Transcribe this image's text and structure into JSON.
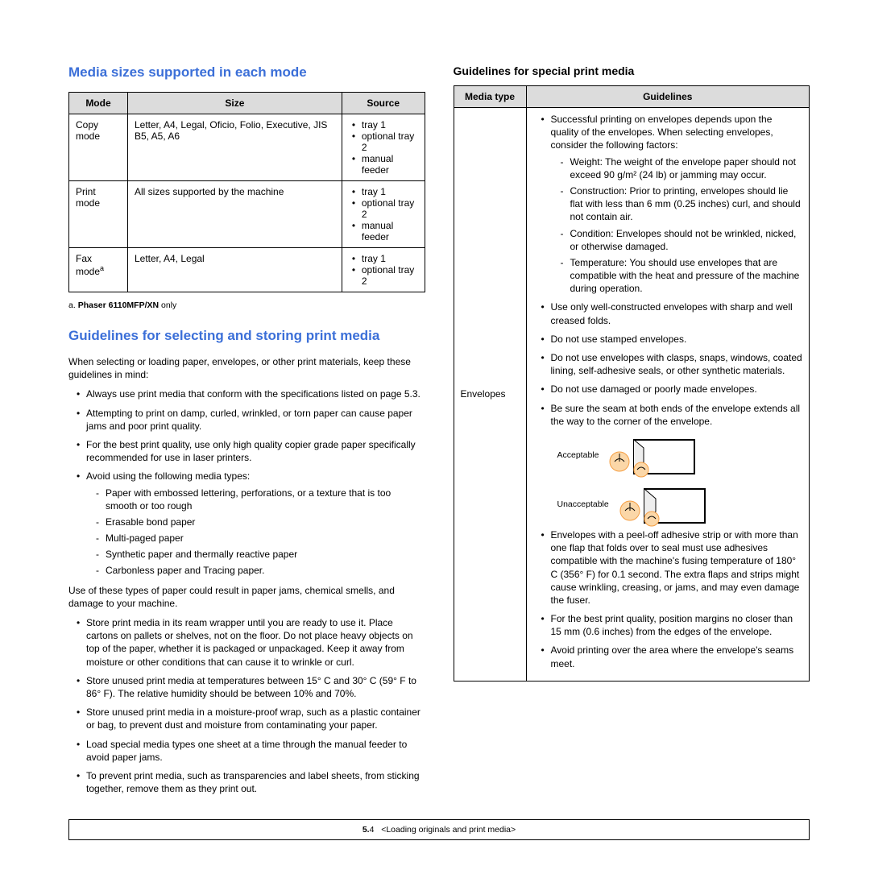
{
  "colors": {
    "heading_blue": "#3b6fd8",
    "table_header_bg": "#dcdcdc",
    "border": "#000000",
    "text": "#000000",
    "accent_orange": "#f59e42"
  },
  "left": {
    "h1": "Media sizes supported in each mode",
    "table": {
      "headers": [
        "Mode",
        "Size",
        "Source"
      ],
      "rows": [
        {
          "mode": "Copy mode",
          "size": "Letter, A4, Legal, Oficio,  Folio, Executive, JIS B5, A5, A6",
          "sources": [
            "tray 1",
            "optional tray 2",
            "manual feeder"
          ]
        },
        {
          "mode": "Print mode",
          "size": "All sizes supported by the machine",
          "sources": [
            "tray 1",
            "optional tray 2",
            "manual feeder"
          ]
        },
        {
          "mode_html": "Fax mode",
          "mode_sup": "a",
          "size": "Letter, A4, Legal",
          "sources": [
            "tray 1",
            "optional tray 2"
          ]
        }
      ]
    },
    "footnote_prefix": "a. ",
    "footnote_bold": "Phaser 6110MFP/XN",
    "footnote_suffix": " only",
    "h2": "Guidelines for selecting and storing print media",
    "p1": "When selecting or loading paper, envelopes, or other print materials, keep these guidelines in mind:",
    "list1": [
      "Always use print media that conform with the specifications listed on page 5.3.",
      "Attempting to print on damp, curled, wrinkled, or torn paper can cause paper jams and poor print quality.",
      "For the best print quality, use only high quality copier grade paper specifically recommended for use in laser printers.",
      "Avoid using the following media types:"
    ],
    "sublist": [
      "Paper with embossed lettering, perforations, or a texture that is too smooth or too rough",
      "Erasable bond paper",
      "Multi-paged paper",
      "Synthetic paper and thermally reactive paper",
      "Carbonless paper and Tracing paper."
    ],
    "p2": "Use of these types of paper could result in paper jams, chemical smells, and damage to your machine.",
    "list2": [
      "Store print media in its ream wrapper until you are ready to use it. Place cartons on pallets or shelves, not on the floor. Do not place heavy objects on top of the paper, whether it is packaged or unpackaged. Keep it away from moisture or other conditions that can cause it to wrinkle or curl.",
      "Store unused print media at temperatures between 15° C and 30° C (59° F to 86° F). The relative humidity should be between 10% and 70%.",
      "Store unused print media in a moisture-proof wrap, such as a plastic container or bag, to prevent dust and moisture from contaminating your paper.",
      "Load special media types one sheet at a time through the manual feeder to avoid paper jams.",
      "To prevent print media, such as transparencies and label sheets, from sticking together, remove them as they print out."
    ]
  },
  "right": {
    "h1": "Guidelines for special print media",
    "headers": [
      "Media type",
      "Guidelines"
    ],
    "row_label": "Envelopes",
    "top_bullets": [
      "Successful printing on envelopes depends upon the quality of the envelopes. When selecting envelopes, consider the following factors:"
    ],
    "factors": [
      "Weight: The weight of the envelope paper should not exceed 90 g/m² (24 lb) or jamming may occur.",
      "Construction: Prior to printing, envelopes should lie flat with less than 6 mm (0.25 inches) curl, and should not contain air.",
      "Condition: Envelopes should not be wrinkled, nicked, or otherwise damaged.",
      "Temperature: You should use envelopes that are compatible with the heat and pressure of the machine during operation."
    ],
    "mid_bullets": [
      "Use only well-constructed envelopes with sharp and well creased folds.",
      "Do not use stamped envelopes.",
      "Do not use envelopes with clasps, snaps, windows, coated lining, self-adhesive seals, or other synthetic materials.",
      "Do not use damaged or poorly made envelopes.",
      "Be sure the seam at both ends of the envelope extends all the way to the corner of the envelope."
    ],
    "fig_acc": "Acceptable",
    "fig_unacc": "Unacceptable",
    "bottom_bullets": [
      "Envelopes with a peel-off adhesive strip or with more than one flap that folds over to seal must use adhesives compatible with the machine's fusing temperature of 180° C (356° F) for 0.1 second. The extra flaps and strips might cause wrinkling, creasing, or jams, and may even damage the fuser.",
      "For the best print quality, position margins no closer than 15 mm (0.6 inches) from the edges of the envelope.",
      "Avoid printing over the area where the envelope's seams meet."
    ]
  },
  "footer": {
    "page_num": "5.",
    "page_sub": "4",
    "chapter": "<Loading originals and print media>"
  }
}
